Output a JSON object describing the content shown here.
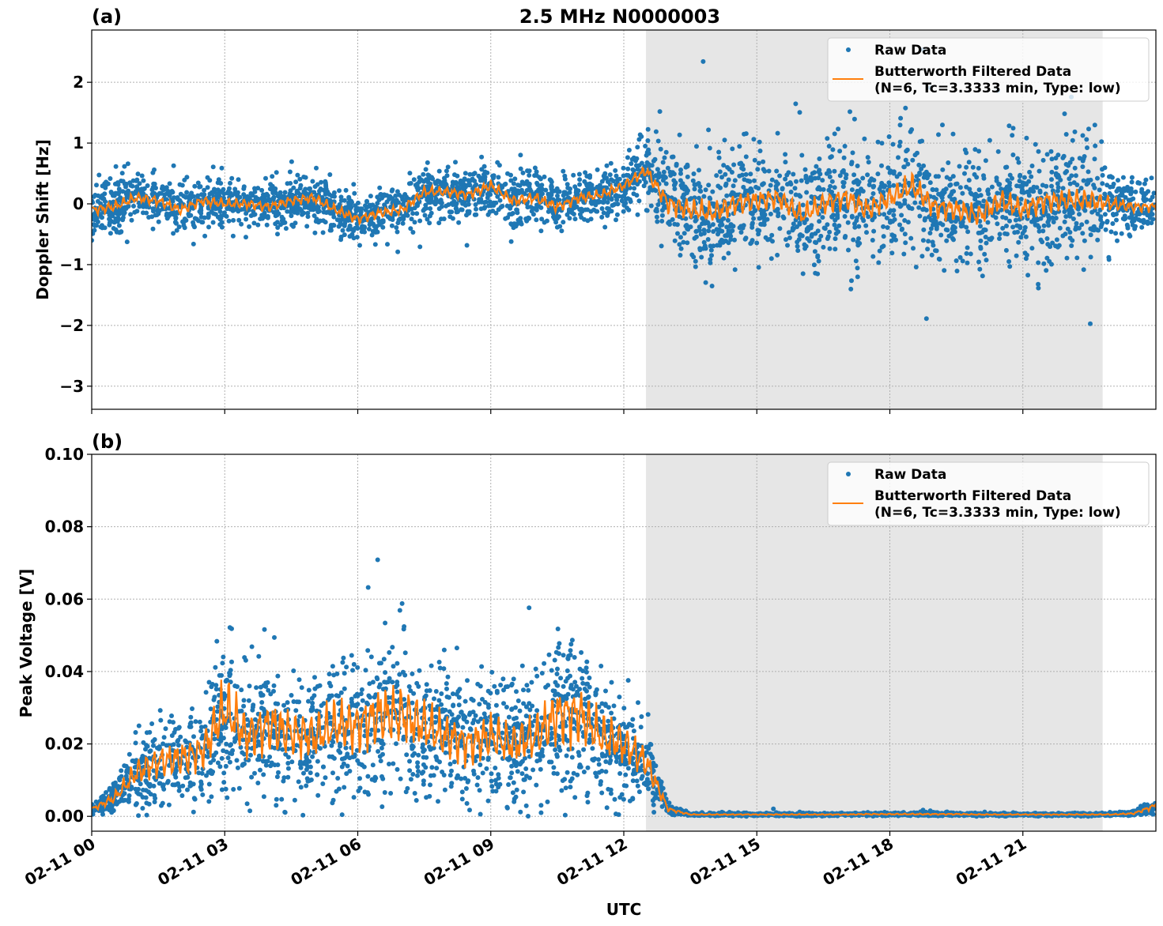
{
  "chart_data": [
    {
      "type": "scatter",
      "panel_label": "(a)",
      "title": "2.5 MHz N0000003",
      "xlabel": "",
      "ylabel": "Doppler Shift [Hz]",
      "xlim_hours": [
        0,
        24
      ],
      "ylim": [
        -3.38,
        2.86
      ],
      "yticks": [
        2,
        1,
        0,
        -1,
        -2,
        -3
      ],
      "ytick_labels": [
        "2",
        "1",
        "0",
        "−1",
        "−2",
        "−3"
      ],
      "grid": true,
      "legend_position": "top-right",
      "legend": [
        "Raw Data",
        "Butterworth Filtered Data",
        "(N=6, Tc=3.3333 min, Type: low)"
      ],
      "shaded_interval_hours": [
        12.5,
        22.8
      ],
      "sample_step_hours": 0.5,
      "series": [
        {
          "name": "Butterworth Filtered Data",
          "color": "#ff7f0e",
          "values": [
            -0.1,
            -0.05,
            0.1,
            0.05,
            -0.1,
            0.05,
            0.0,
            0.0,
            -0.05,
            0.05,
            0.1,
            -0.1,
            -0.25,
            -0.15,
            -0.1,
            0.2,
            0.2,
            0.15,
            0.3,
            0.05,
            0.1,
            -0.05,
            0.1,
            0.15,
            0.3,
            0.55,
            0.0,
            -0.1,
            -0.15,
            0.0,
            0.05,
            0.1,
            -0.2,
            0.0,
            0.1,
            -0.1,
            0.1,
            0.3,
            -0.05,
            -0.1,
            -0.2,
            0.05,
            -0.1,
            0.05,
            0.05,
            0.05,
            0.0,
            -0.05,
            -0.05
          ]
        },
        {
          "name": "Raw Data",
          "color": "#1f77b4",
          "spread_std": [
            0.2,
            0.2,
            0.2,
            0.2,
            0.2,
            0.2,
            0.2,
            0.2,
            0.2,
            0.2,
            0.2,
            0.2,
            0.2,
            0.2,
            0.2,
            0.2,
            0.2,
            0.2,
            0.22,
            0.22,
            0.22,
            0.22,
            0.2,
            0.2,
            0.2,
            0.25,
            0.4,
            0.45,
            0.45,
            0.45,
            0.45,
            0.4,
            0.45,
            0.45,
            0.45,
            0.45,
            0.45,
            0.5,
            0.45,
            0.45,
            0.45,
            0.45,
            0.45,
            0.45,
            0.45,
            0.45,
            0.3,
            0.2,
            0.2
          ]
        }
      ]
    },
    {
      "type": "scatter",
      "panel_label": "(b)",
      "xlabel": "UTC",
      "ylabel": "Peak Voltage [V]",
      "xlim_hours": [
        0,
        24
      ],
      "ylim": [
        -0.0041,
        0.1
      ],
      "yticks": [
        0.0,
        0.02,
        0.04,
        0.06,
        0.08,
        0.1
      ],
      "ytick_labels": [
        "0.00",
        "0.02",
        "0.04",
        "0.06",
        "0.08",
        "0.10"
      ],
      "xtick_hours": [
        0,
        3,
        6,
        9,
        12,
        15,
        18,
        21
      ],
      "xtick_labels": [
        "02-11 00",
        "02-11 03",
        "02-11 06",
        "02-11 09",
        "02-11 12",
        "02-11 15",
        "02-11 18",
        "02-11 21"
      ],
      "grid": true,
      "legend_position": "top-right",
      "legend": [
        "Raw Data",
        "Butterworth Filtered Data",
        "(N=6, Tc=3.3333 min, Type: low)"
      ],
      "shaded_interval_hours": [
        12.5,
        22.8
      ],
      "sample_step_hours": 0.5,
      "series": [
        {
          "name": "Butterworth Filtered Data",
          "color": "#ff7f0e",
          "values": [
            0.002,
            0.005,
            0.012,
            0.015,
            0.016,
            0.018,
            0.03,
            0.022,
            0.025,
            0.023,
            0.022,
            0.025,
            0.025,
            0.028,
            0.028,
            0.025,
            0.022,
            0.02,
            0.022,
            0.02,
            0.022,
            0.028,
            0.028,
            0.022,
            0.02,
            0.015,
            0.002,
            0.0005,
            0.0005,
            0.0005,
            0.0005,
            0.0005,
            0.0005,
            0.0005,
            0.0005,
            0.0006,
            0.0006,
            0.0006,
            0.0006,
            0.0006,
            0.0005,
            0.0005,
            0.0005,
            0.0005,
            0.0005,
            0.0005,
            0.0005,
            0.0008,
            0.003
          ]
        },
        {
          "name": "Raw Data",
          "color": "#1f77b4",
          "relative_spread": 0.38
        }
      ]
    }
  ]
}
